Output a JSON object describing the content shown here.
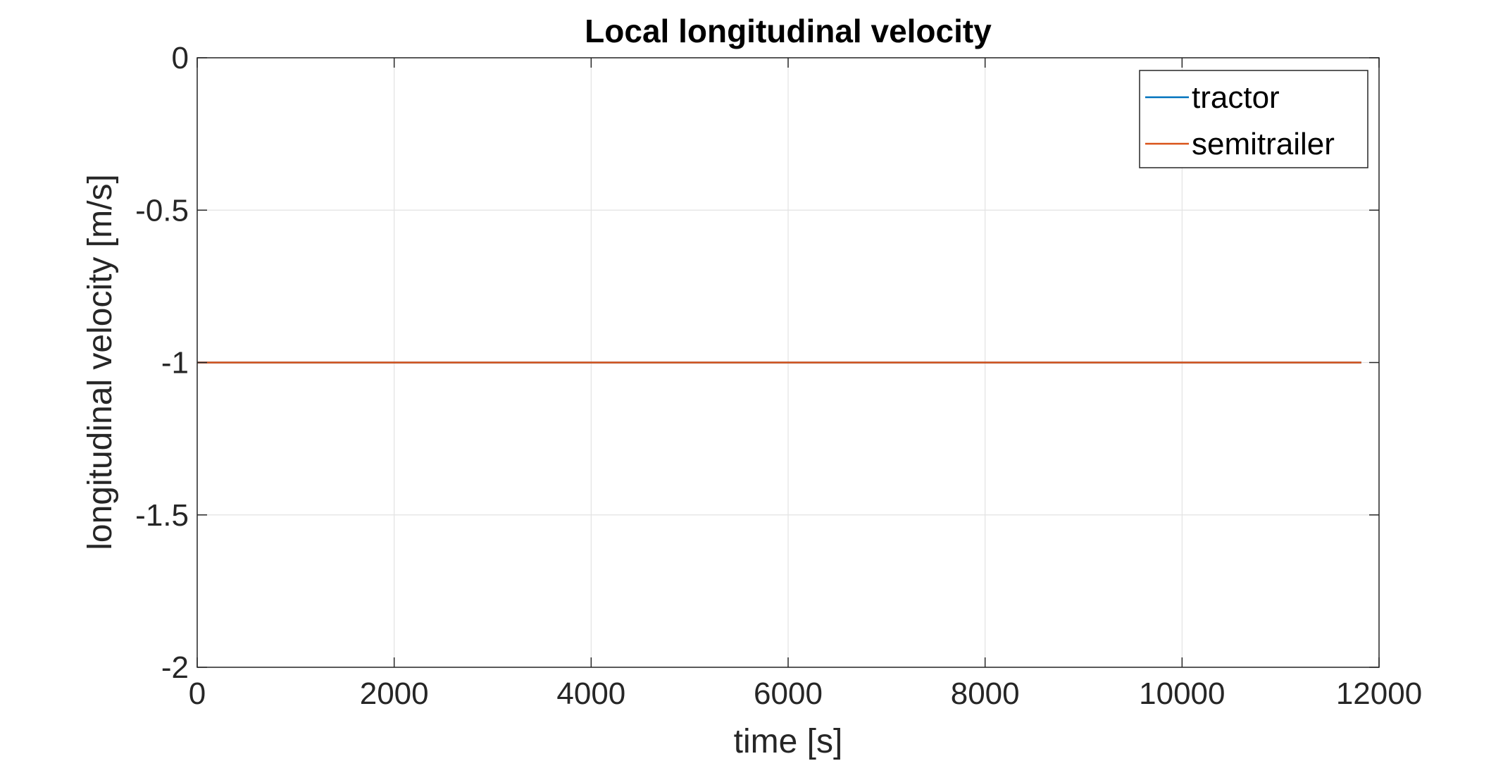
{
  "chart_data": {
    "type": "line",
    "title": "Local longitudinal velocity",
    "xlabel": "time [s]",
    "ylabel": "longitudinal velocity [m/s]",
    "xlim": [
      0,
      12000
    ],
    "ylim": [
      -2,
      0
    ],
    "xticks": [
      0,
      2000,
      4000,
      6000,
      8000,
      10000,
      12000
    ],
    "xtick_labels": [
      "0",
      "2000",
      "4000",
      "6000",
      "8000",
      "10000",
      "12000"
    ],
    "yticks": [
      0,
      -0.5,
      -1,
      -1.5,
      -2
    ],
    "ytick_labels": [
      "0",
      "-0.5",
      "-1",
      "-1.5",
      "-2"
    ],
    "grid": true,
    "legend_position": "top-right",
    "series": [
      {
        "name": "tractor",
        "color": "#0072BD",
        "x": [
          0,
          11820
        ],
        "y": [
          -1,
          -1
        ]
      },
      {
        "name": "semitrailer",
        "color": "#D95319",
        "x": [
          0,
          11820
        ],
        "y": [
          -1,
          -1
        ]
      }
    ]
  }
}
